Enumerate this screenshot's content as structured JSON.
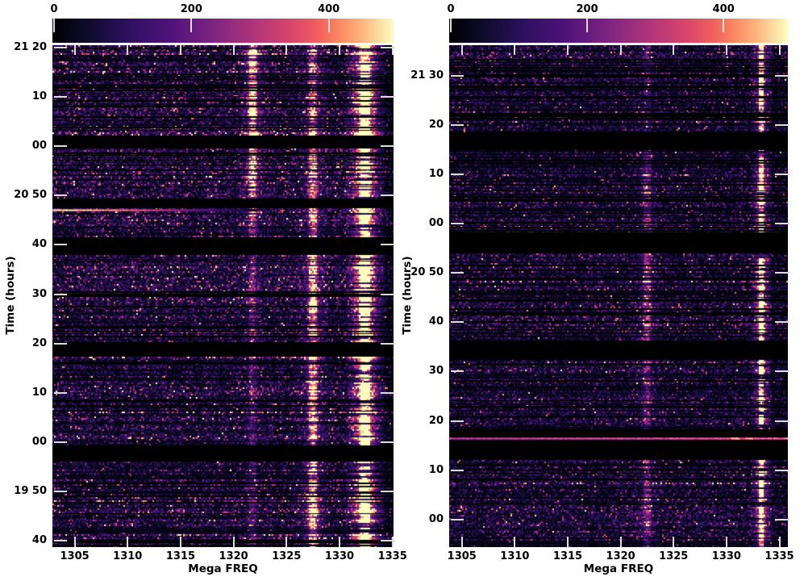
{
  "figure": {
    "background": "#ffffff",
    "tick_color": "#dcdcdc",
    "text_color": "#000000"
  },
  "colormap": {
    "name": "magma-like",
    "stops": [
      {
        "t": 0.0,
        "c": "#000004"
      },
      {
        "t": 0.1,
        "c": "#0e0b2b"
      },
      {
        "t": 0.22,
        "c": "#2d1160"
      },
      {
        "t": 0.35,
        "c": "#51127c"
      },
      {
        "t": 0.48,
        "c": "#822681"
      },
      {
        "t": 0.6,
        "c": "#b5367a"
      },
      {
        "t": 0.7,
        "c": "#d8456c"
      },
      {
        "t": 0.78,
        "c": "#f1605d"
      },
      {
        "t": 0.84,
        "c": "#fb8861"
      },
      {
        "t": 0.9,
        "c": "#fdb07a"
      },
      {
        "t": 0.95,
        "c": "#fdd79c"
      },
      {
        "t": 1.0,
        "c": "#fcfdbf"
      }
    ]
  },
  "chart_data": [
    {
      "type": "heatmap",
      "title": "",
      "xlabel": "Mega FREQ",
      "ylabel": "Time (hours)",
      "x_range": [
        1302.9,
        1335.1
      ],
      "x_ticks": [
        {
          "label": "1305",
          "value": 1305
        },
        {
          "label": "1310",
          "value": 1310
        },
        {
          "label": "1315",
          "value": 1315
        },
        {
          "label": "1320",
          "value": 1320
        },
        {
          "label": "1325",
          "value": 1325
        },
        {
          "label": "1330",
          "value": 1330
        },
        {
          "label": "1335",
          "value": 1335
        }
      ],
      "t_range": [
        1178.7,
        1280.5
      ],
      "y_ticks": [
        {
          "label": "21 20",
          "t": 1280
        },
        {
          "label": "10",
          "t": 1270
        },
        {
          "label": "00",
          "t": 1260
        },
        {
          "label": "20 50",
          "t": 1250
        },
        {
          "label": "40",
          "t": 1240
        },
        {
          "label": "30",
          "t": 1230
        },
        {
          "label": "20",
          "t": 1220
        },
        {
          "label": "10",
          "t": 1210
        },
        {
          "label": "00",
          "t": 1200
        },
        {
          "label": "19 50",
          "t": 1190
        },
        {
          "label": "40",
          "t": 1180
        }
      ],
      "colorbar": {
        "vmin": 0,
        "vmax": 492,
        "ticks": [
          {
            "label": "0",
            "value": 0
          },
          {
            "label": "200",
            "value": 200
          },
          {
            "label": "400",
            "value": 400
          }
        ]
      },
      "gaps": [
        [
          1259.6,
          1262.2
        ],
        [
          1247.4,
          1249.4
        ],
        [
          1238.1,
          1241.4
        ],
        [
          1217.2,
          1220.4
        ],
        [
          1195.9,
          1199.2
        ]
      ],
      "rfi_stripes": [
        {
          "freq": 1321.8,
          "sigma": 0.3,
          "amp": 330,
          "mode": "speckle",
          "halo": 0.25,
          "section_scale": [
            1.0,
            0.7,
            0.45,
            0.25,
            0.2,
            0.18
          ]
        },
        {
          "freq": 1327.5,
          "sigma": 0.33,
          "amp": 300,
          "mode": "speckle",
          "halo": 0.25,
          "section_scale": [
            0.6,
            0.7,
            0.7,
            0.9,
            0.9,
            1.0
          ]
        },
        {
          "freq": 1332.4,
          "sigma": 0.36,
          "amp": 720,
          "mode": "saturated",
          "halo": 0.32,
          "section_scale": [
            1.0,
            1.0,
            0.95,
            1.0,
            1.0,
            1.0
          ]
        }
      ],
      "streaks": [
        {
          "t": 1247.1,
          "type": "fade-right",
          "extent": 0.62,
          "peak": 540
        }
      ],
      "noise": {
        "mean": 78,
        "dark_row_p": 0.18,
        "dropout_rows": 55,
        "taper": {
          "from": 1333.4,
          "factor": 0.45
        }
      }
    },
    {
      "type": "heatmap",
      "title": "",
      "xlabel": "Mega FREQ",
      "ylabel": "Time (hours)",
      "x_range": [
        1303.8,
        1335.8
      ],
      "x_ticks": [
        {
          "label": "1305",
          "value": 1305
        },
        {
          "label": "1310",
          "value": 1310
        },
        {
          "label": "1315",
          "value": 1315
        },
        {
          "label": "1320",
          "value": 1320
        },
        {
          "label": "1325",
          "value": 1325
        },
        {
          "label": "1330",
          "value": 1330
        },
        {
          "label": "1335",
          "value": 1335
        }
      ],
      "t_range": [
        1194.4,
        1296.2
      ],
      "y_ticks": [
        {
          "label": "21 30",
          "t": 1290
        },
        {
          "label": "20",
          "t": 1280
        },
        {
          "label": "10",
          "t": 1270
        },
        {
          "label": "00",
          "t": 1260
        },
        {
          "label": "20 50",
          "t": 1250
        },
        {
          "label": "40",
          "t": 1240
        },
        {
          "label": "30",
          "t": 1230
        },
        {
          "label": "20",
          "t": 1220
        },
        {
          "label": "10",
          "t": 1210
        },
        {
          "label": "00",
          "t": 1200
        }
      ],
      "colorbar": {
        "vmin": 0,
        "vmax": 492,
        "ticks": [
          {
            "label": "0",
            "value": 0
          },
          {
            "label": "200",
            "value": 200
          },
          {
            "label": "400",
            "value": 400
          }
        ]
      },
      "gaps": [
        [
          1274.9,
          1278.4
        ],
        [
          1254.1,
          1257.9
        ],
        [
          1232.5,
          1236.3
        ],
        [
          1216.8,
          1218.3
        ],
        [
          1212.1,
          1216.2
        ]
      ],
      "rfi_stripes": [
        {
          "freq": 1322.5,
          "sigma": 0.32,
          "amp": 190,
          "mode": "speckle",
          "halo": 0.25,
          "section_scale": [
            0.25,
            0.5,
            0.65,
            0.5,
            0.2,
            0.55
          ]
        },
        {
          "freq": 1333.3,
          "sigma": 0.2,
          "amp": 520,
          "mode": "saturated",
          "halo": 0.28,
          "section_scale": [
            0.7,
            0.9,
            1.0,
            0.9,
            1.0,
            1.0
          ]
        }
      ],
      "streaks": [
        {
          "t": 1216.5,
          "type": "rise-right",
          "base": 320,
          "slope": 80,
          "spots": [
            {
              "frac": 0.845,
              "value": 540
            },
            {
              "frac": 0.885,
              "value": 470
            }
          ]
        }
      ],
      "noise": {
        "mean": 64,
        "dark_row_p": 0.24,
        "dropout_rows": 68,
        "taper": {
          "from": 1334.2,
          "factor": 0.7
        }
      }
    }
  ]
}
